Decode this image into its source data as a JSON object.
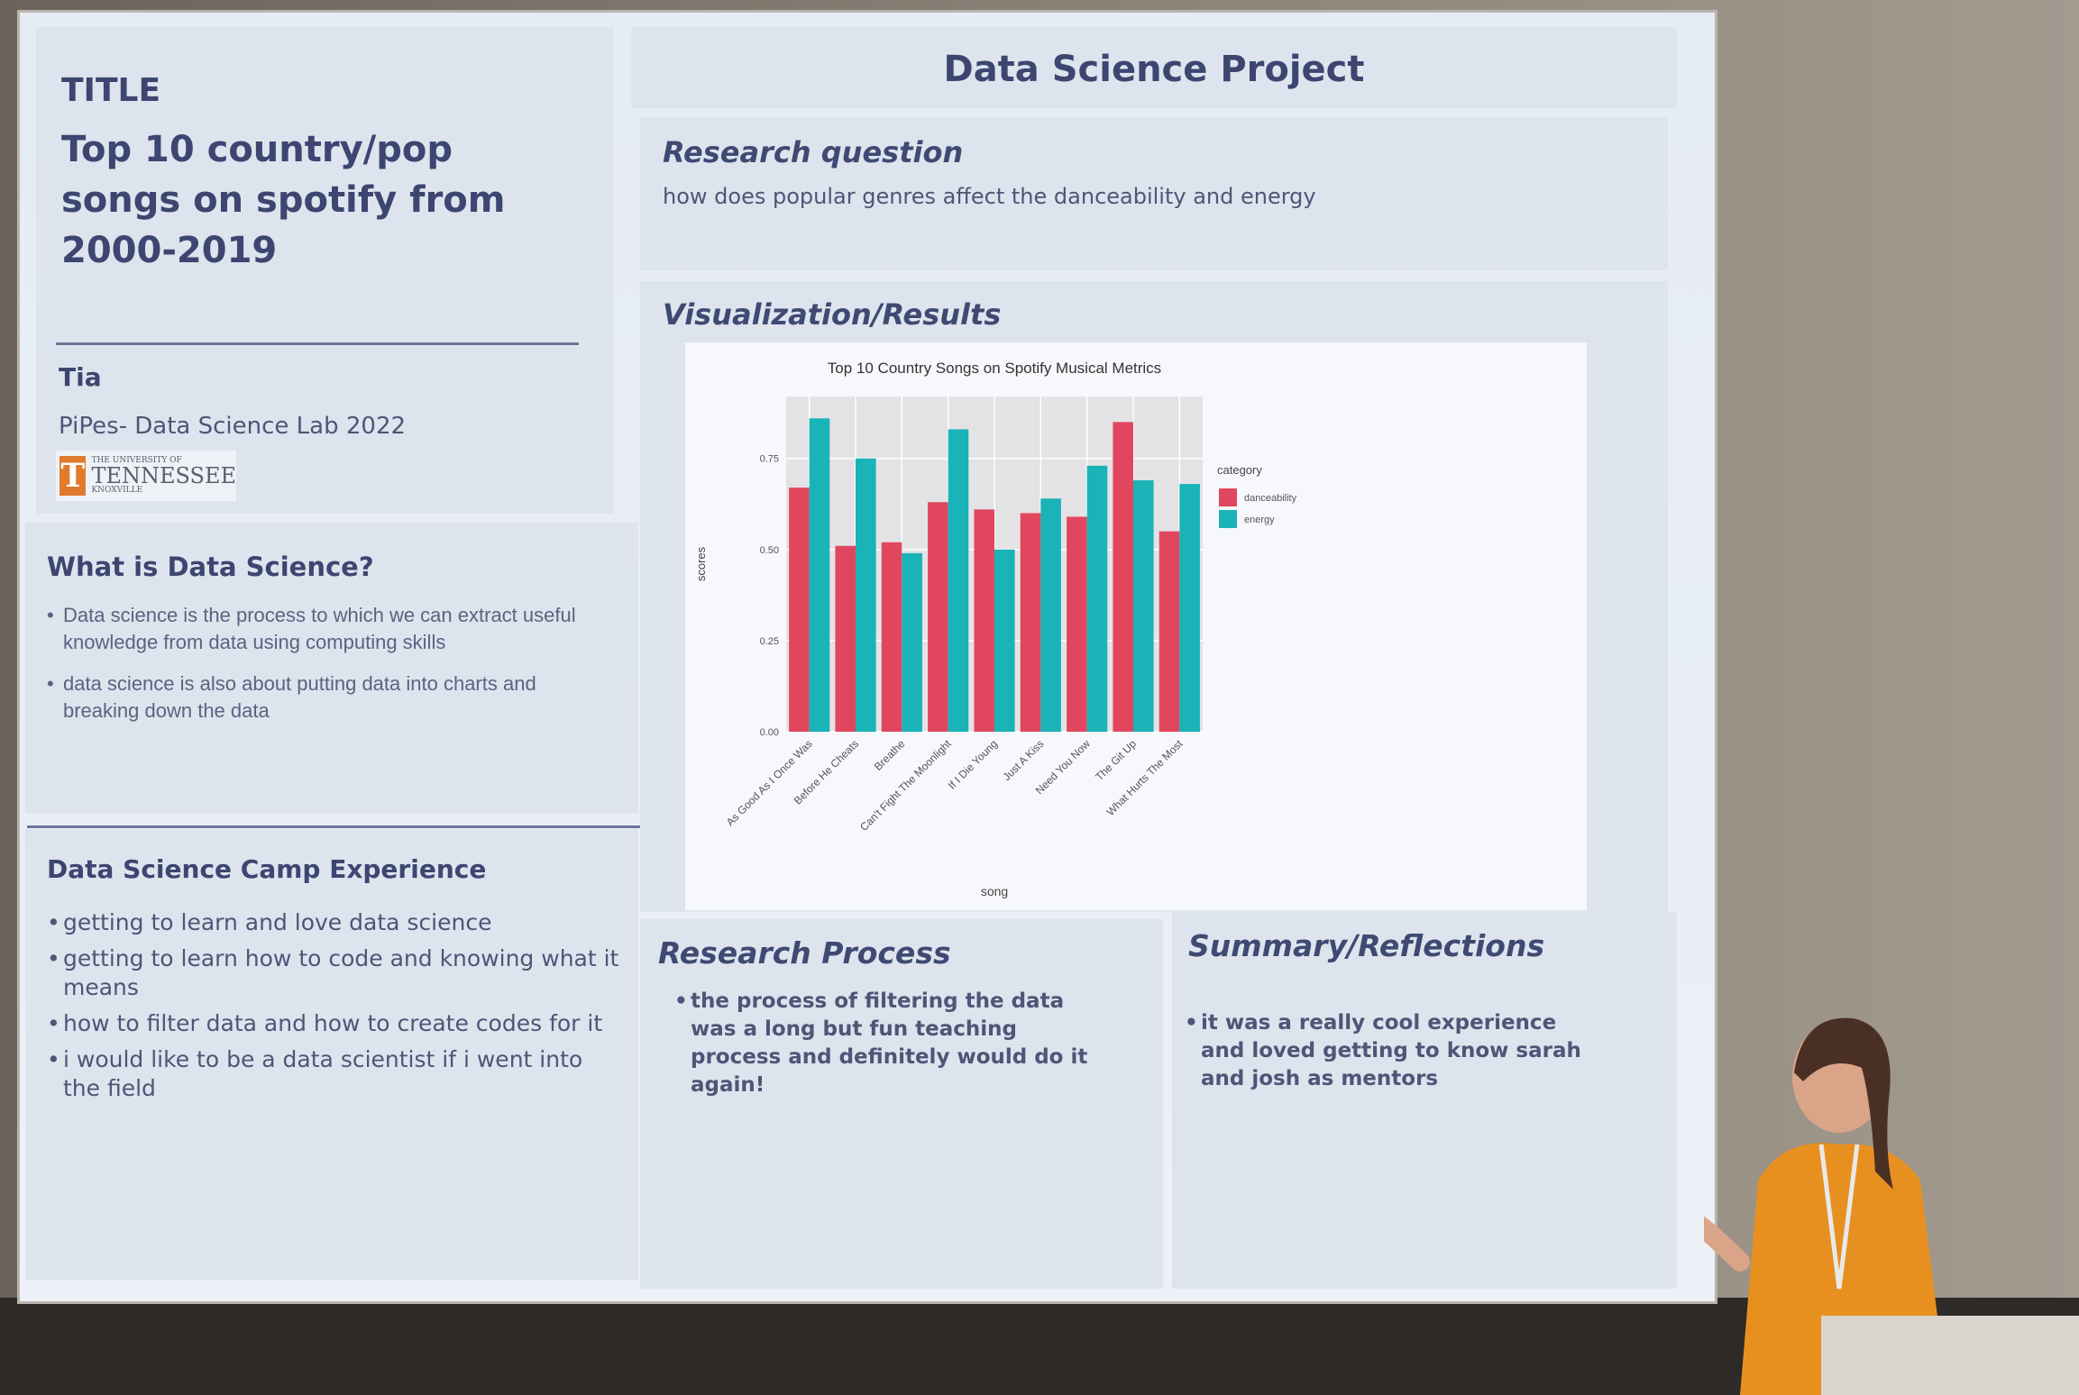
{
  "left": {
    "title_label": "TITLE",
    "title": "Top 10 country/pop songs on spotify from 2000-2019",
    "author": "Tia",
    "lab": "PiPes- Data Science Lab 2022",
    "logo": {
      "letter": "T",
      "small_text": "THE UNIVERSITY OF",
      "big_text": "TENNESSEE",
      "sub_text": "KNOXVILLE"
    },
    "what_is": {
      "heading": "What is Data Science?",
      "items": [
        "Data science is the process to which we can extract useful knowledge from data using computing skills",
        "data science is also about putting data into charts and breaking down the data"
      ]
    },
    "camp": {
      "heading": "Data Science Camp Experience",
      "items": [
        "getting to learn and love data science",
        "getting to learn how to code and knowing what it means",
        "how to filter data and how to create codes for it",
        "i would like to be a data scientist if i went into the field"
      ]
    }
  },
  "right": {
    "project_title": "Data Science Project",
    "research_question": {
      "heading": "Research question",
      "text": "how does popular genres affect the danceability and energy"
    },
    "visualization_heading": "Visualization/Results",
    "process": {
      "heading": "Research Process",
      "items": [
        "the process of filtering the data was a long but fun teaching process and  definitely would do it again!"
      ]
    },
    "summary": {
      "heading": "Summary/Reflections",
      "items": [
        "it was a really cool experience and loved getting to know sarah and josh as mentors"
      ]
    }
  },
  "chart_data": {
    "type": "bar",
    "title": "Top 10 Country Songs on Spotify Musical Metrics",
    "xlabel": "song",
    "ylabel": "scores",
    "ylim": [
      0,
      0.92
    ],
    "yticks": [
      0.0,
      0.25,
      0.5,
      0.75
    ],
    "ytick_labels": [
      "0.00",
      "0.25",
      "0.50",
      "0.75"
    ],
    "grid": true,
    "legend_title": "category",
    "legend_position": "right",
    "categories": [
      "As Good As I Once Was",
      "Before He Cheats",
      "Breathe",
      "Can't Fight The Moonlight",
      "If I Die Young",
      "Just A Kiss",
      "Need You Now",
      "The Git Up",
      "What Hurts The Most"
    ],
    "series": [
      {
        "name": "danceability",
        "color": "#e0475e",
        "values": [
          0.67,
          0.51,
          0.52,
          0.63,
          0.61,
          0.6,
          0.59,
          0.85,
          0.55
        ]
      },
      {
        "name": "energy",
        "color": "#19b3b8",
        "values": [
          0.86,
          0.75,
          0.49,
          0.83,
          0.5,
          0.64,
          0.73,
          0.69,
          0.68
        ]
      }
    ]
  }
}
